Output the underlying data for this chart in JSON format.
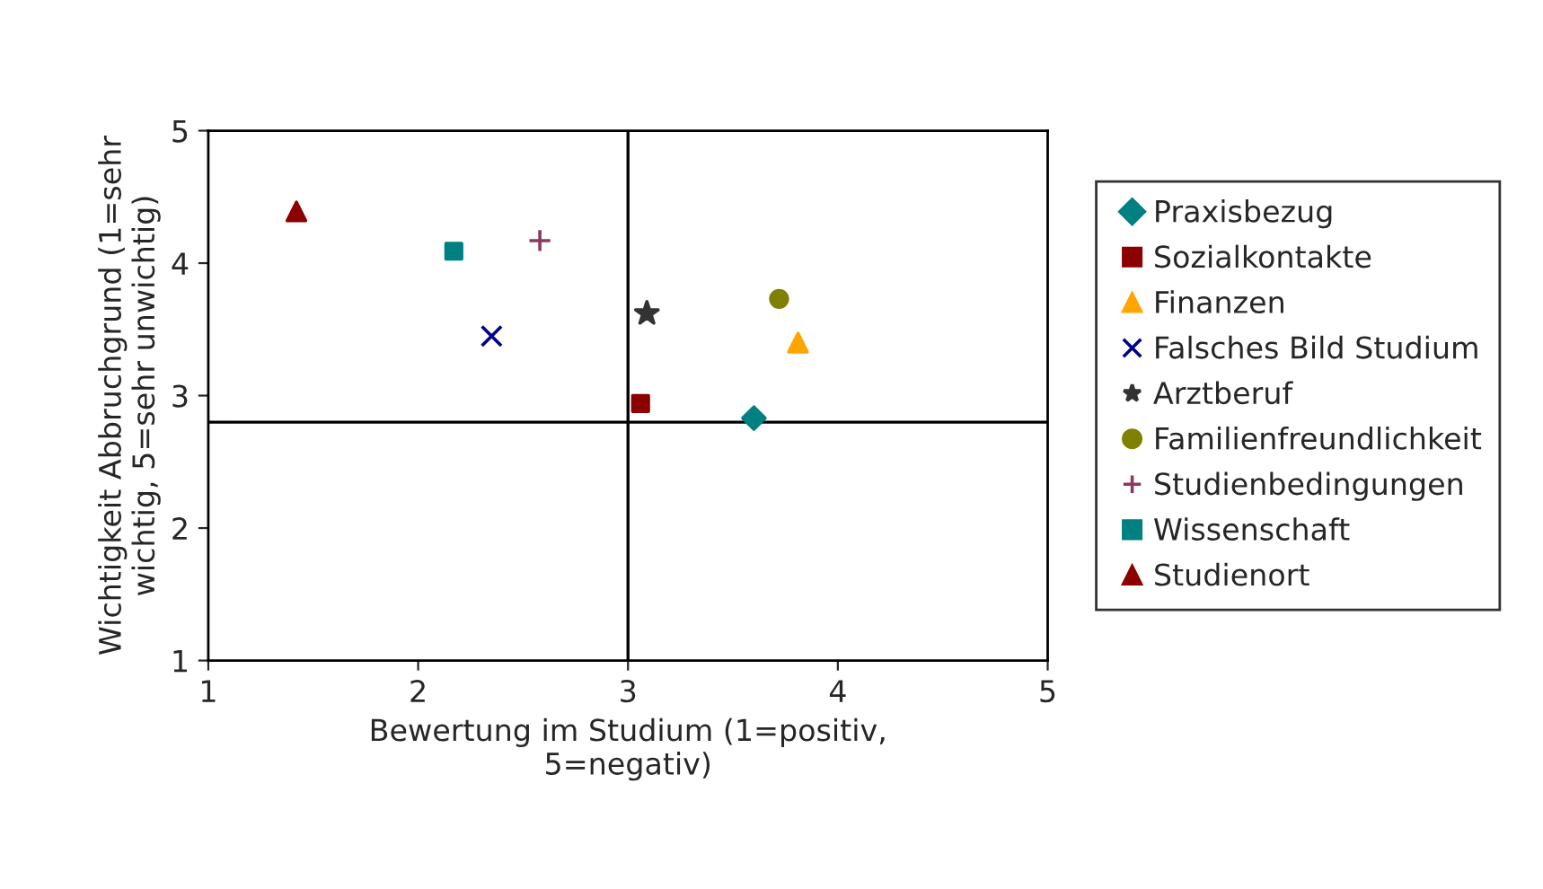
{
  "chart_data": {
    "type": "scatter",
    "xlabel": "Bewertung im Studium (1=positiv,\n5=negativ)",
    "ylabel": "Wichtigkeit Abbruchgrund (1=sehr\nwichtig, 5=sehr unwichtig)",
    "xlim": [
      1,
      5
    ],
    "ylim": [
      1,
      5
    ],
    "xticks": [
      1,
      2,
      3,
      4,
      5
    ],
    "yticks": [
      1,
      2,
      3,
      4,
      5
    ],
    "grid": false,
    "legend": "right",
    "ref_lines": [
      {
        "axis": "x",
        "value": 3,
        "color": "#000000"
      },
      {
        "axis": "y",
        "value": 2.8,
        "color": "#000000"
      }
    ],
    "series": [
      {
        "name": "Praxisbezug",
        "color": "#008080",
        "marker": "diamond",
        "x": [
          3.6
        ],
        "values": [
          2.83
        ]
      },
      {
        "name": "Sozialkontakte",
        "color": "#8b0000",
        "marker": "square",
        "x": [
          3.06
        ],
        "values": [
          2.94
        ]
      },
      {
        "name": "Finanzen",
        "color": "#ffa500",
        "marker": "triangle",
        "x": [
          3.81
        ],
        "values": [
          3.4
        ]
      },
      {
        "name": "Falsches Bild Studium",
        "color": "#00008b",
        "marker": "cross",
        "x": [
          2.35
        ],
        "values": [
          3.45
        ]
      },
      {
        "name": "Arztberuf",
        "color": "#333333",
        "marker": "star",
        "x": [
          3.09
        ],
        "values": [
          3.62
        ]
      },
      {
        "name": "Familienfreundlichkeit",
        "color": "#808000",
        "marker": "circle",
        "x": [
          3.72
        ],
        "values": [
          3.73
        ]
      },
      {
        "name": "Studienbedingungen",
        "color": "#8b3a62",
        "x": [
          2.58
        ],
        "values": [
          4.17
        ]
      },
      {
        "name": "Wissenschaft",
        "color": "#008080",
        "marker": "square",
        "x": [
          2.17
        ],
        "values": [
          4.09
        ]
      },
      {
        "name": "Studienort",
        "color": "#8b0000",
        "marker": "triangle",
        "x": [
          1.42
        ],
        "values": [
          4.39
        ]
      }
    ]
  }
}
